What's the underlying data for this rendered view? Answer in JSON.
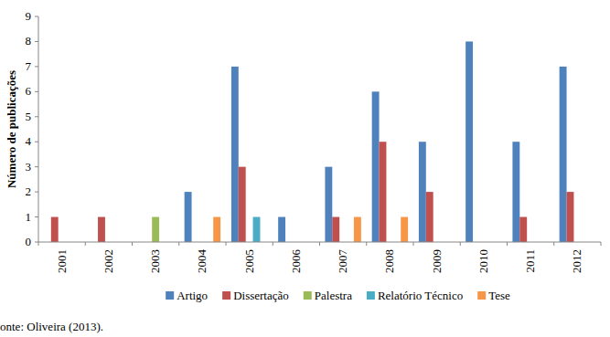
{
  "chart_data": {
    "type": "bar",
    "y_label": "Número de publicações",
    "source": "onte: Oliveira (2013).",
    "categories": [
      "2001",
      "2002",
      "2003",
      "2004",
      "2005",
      "2006",
      "2007",
      "2008",
      "2009",
      "2010",
      "2011",
      "2012"
    ],
    "series": [
      {
        "name": "Artigo",
        "color": "#4f81bd",
        "values": [
          0,
          0,
          0,
          2,
          7,
          1,
          3,
          6,
          4,
          8,
          4,
          7
        ]
      },
      {
        "name": "Dissertação",
        "color": "#c0504d",
        "values": [
          1,
          1,
          0,
          0,
          3,
          0,
          1,
          4,
          2,
          0,
          1,
          2
        ]
      },
      {
        "name": "Palestra",
        "color": "#9bbb59",
        "values": [
          0,
          0,
          1,
          0,
          0,
          0,
          0,
          0,
          0,
          0,
          0,
          0
        ]
      },
      {
        "name": "Relatório Técnico",
        "color": "#4bacc6",
        "values": [
          0,
          0,
          0,
          0,
          1,
          0,
          0,
          0,
          0,
          0,
          0,
          0
        ]
      },
      {
        "name": "Tese",
        "color": "#f79646",
        "values": [
          0,
          0,
          0,
          1,
          0,
          0,
          1,
          1,
          0,
          0,
          0,
          0
        ]
      }
    ],
    "ylim": [
      0,
      9
    ],
    "yticks": [
      0,
      1,
      2,
      3,
      4,
      5,
      6,
      7,
      8,
      9
    ],
    "grid": false,
    "legend": "bottom"
  }
}
